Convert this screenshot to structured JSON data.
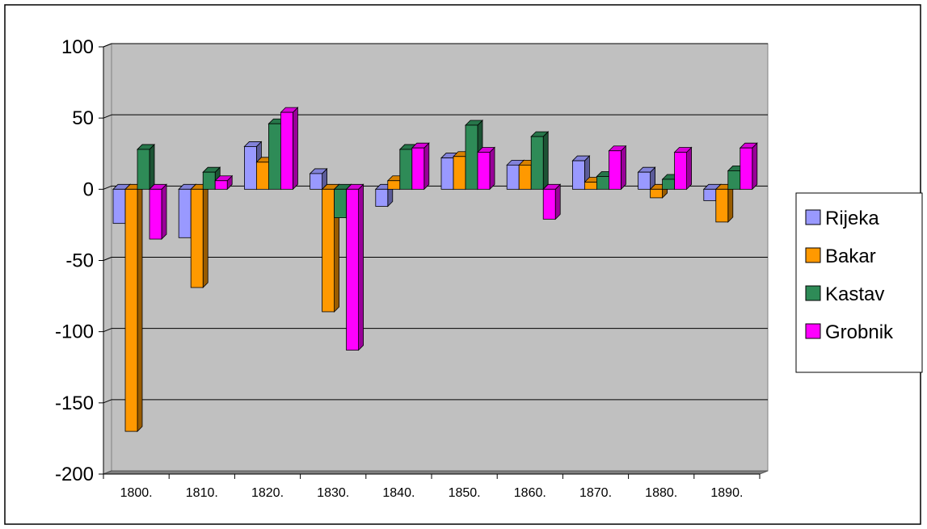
{
  "chart_data": {
    "type": "bar",
    "categories": [
      "1800.",
      "1810.",
      "1820.",
      "1830.",
      "1840.",
      "1850.",
      "1860.",
      "1870.",
      "1880.",
      "1890."
    ],
    "series": [
      {
        "name": "Rijeka",
        "color": "#9999ff",
        "values": [
          -24,
          -34,
          30,
          11,
          -12,
          22,
          17,
          20,
          12,
          -8
        ]
      },
      {
        "name": "Bakar",
        "color": "#ff9900",
        "values": [
          -170,
          -69,
          19,
          -86,
          6,
          23,
          17,
          5,
          -6,
          -23
        ]
      },
      {
        "name": "Kastav",
        "color": "#2e8b57",
        "values": [
          28,
          12,
          46,
          -20,
          28,
          45,
          37,
          9,
          7,
          13
        ]
      },
      {
        "name": "Grobnik",
        "color": "#ff00ff",
        "values": [
          -35,
          6,
          54,
          -113,
          29,
          26,
          -21,
          27,
          26,
          29
        ]
      }
    ],
    "yticks": [
      "100",
      "50",
      "0",
      "-50",
      "-100",
      "-150",
      "-200"
    ],
    "ylim": [
      -200,
      100
    ],
    "grid": true,
    "legend_position": "right",
    "plot_background": "#c0c0c0",
    "title": "",
    "xlabel": "",
    "ylabel": ""
  }
}
